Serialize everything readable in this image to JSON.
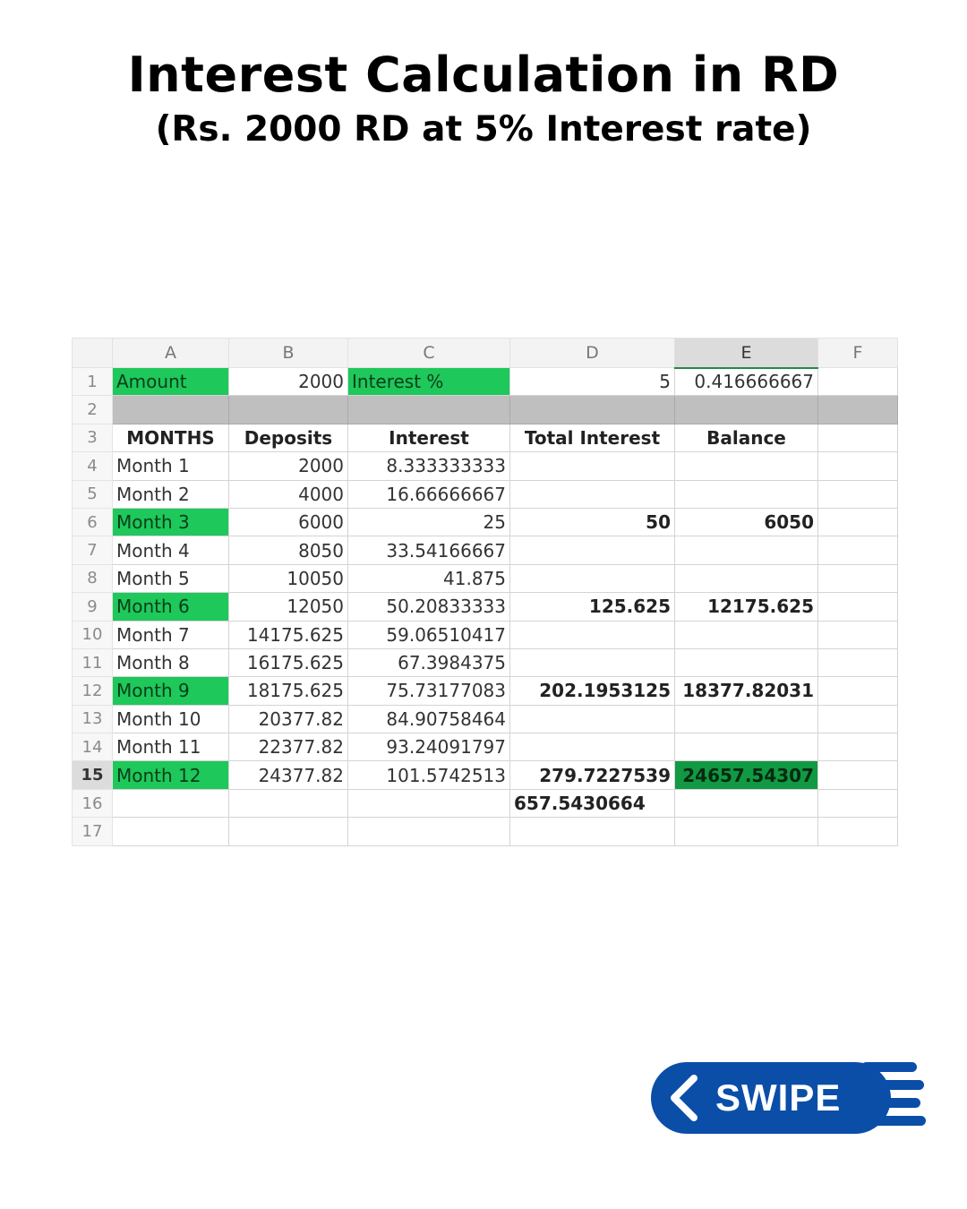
{
  "header": {
    "title": "Interest Calculation in RD",
    "subtitle": "(Rs. 2000 RD at 5% Interest rate)"
  },
  "sheet": {
    "columns": [
      "A",
      "B",
      "C",
      "D",
      "E",
      "F"
    ],
    "row_numbers": [
      "1",
      "2",
      "3",
      "4",
      "5",
      "6",
      "7",
      "8",
      "9",
      "10",
      "11",
      "12",
      "13",
      "14",
      "15",
      "16",
      "17"
    ],
    "row1": {
      "amount_label": "Amount",
      "amount_value": "2000",
      "interest_label": "Interest %",
      "interest_value": "5",
      "monthly_rate": "0.416666667"
    },
    "headers": [
      "MONTHS",
      "Deposits",
      "Interest",
      "Total Interest",
      "Balance"
    ],
    "rows": [
      {
        "month": "Month 1",
        "deposit": "2000",
        "interest": "8.333333333",
        "total_interest": "",
        "balance": ""
      },
      {
        "month": "Month 2",
        "deposit": "4000",
        "interest": "16.66666667",
        "total_interest": "",
        "balance": ""
      },
      {
        "month": "Month 3",
        "deposit": "6000",
        "interest": "25",
        "total_interest": "50",
        "balance": "6050"
      },
      {
        "month": "Month 4",
        "deposit": "8050",
        "interest": "33.54166667",
        "total_interest": "",
        "balance": ""
      },
      {
        "month": "Month 5",
        "deposit": "10050",
        "interest": "41.875",
        "total_interest": "",
        "balance": ""
      },
      {
        "month": "Month 6",
        "deposit": "12050",
        "interest": "50.20833333",
        "total_interest": "125.625",
        "balance": "12175.625"
      },
      {
        "month": "Month 7",
        "deposit": "14175.625",
        "interest": "59.06510417",
        "total_interest": "",
        "balance": ""
      },
      {
        "month": "Month 8",
        "deposit": "16175.625",
        "interest": "67.3984375",
        "total_interest": "",
        "balance": ""
      },
      {
        "month": "Month 9",
        "deposit": "18175.625",
        "interest": "75.73177083",
        "total_interest": "202.1953125",
        "balance": "18377.82031"
      },
      {
        "month": "Month 10",
        "deposit": "20377.82",
        "interest": "84.90758464",
        "total_interest": "",
        "balance": ""
      },
      {
        "month": "Month 11",
        "deposit": "22377.82",
        "interest": "93.24091797",
        "total_interest": "",
        "balance": ""
      },
      {
        "month": "Month 12",
        "deposit": "24377.82",
        "interest": "101.5742513",
        "total_interest": "279.7227539",
        "balance": "24657.54307"
      }
    ],
    "grand_total_interest": "657.5430664"
  },
  "swipe": {
    "label": "SWIPE",
    "color": "#0a4ea8"
  },
  "colors": {
    "highlight_green": "#1ec85a",
    "selected_green": "#119944",
    "separator_gray": "#bfbfbf"
  }
}
